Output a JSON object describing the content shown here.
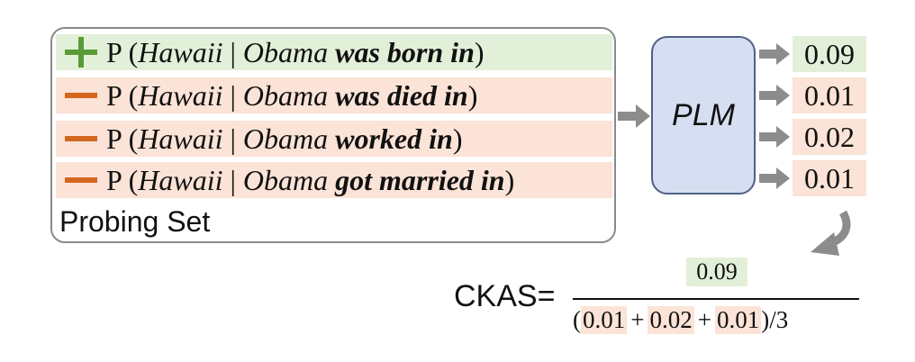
{
  "probing_set": {
    "label": "Probing Set",
    "rows": [
      {
        "sign": "+",
        "p": "P (",
        "entity": "Hawaii",
        "bar": " | ",
        "subject": "Obama",
        "relation": " was born in",
        "close": ")"
      },
      {
        "sign": "−",
        "p": "P (",
        "entity": "Hawaii",
        "bar": " | ",
        "subject": "Obama",
        "relation": " was died in",
        "close": ")"
      },
      {
        "sign": "−",
        "p": "P (",
        "entity": "Hawaii",
        "bar": " | ",
        "subject": "Obama",
        "relation": " worked in",
        "close": ")"
      },
      {
        "sign": "−",
        "p": "P (",
        "entity": "Hawaii",
        "bar": " | ",
        "subject": "Obama",
        "relation": " got married in",
        "close": ")"
      }
    ]
  },
  "model": {
    "label": "PLM"
  },
  "outputs": [
    "0.09",
    "0.01",
    "0.02",
    "0.01"
  ],
  "formula": {
    "label": "CKAS=",
    "numerator": "0.09",
    "den_open": "(",
    "den_terms": [
      "0.01",
      "0.02",
      "0.01"
    ],
    "den_plus": "+",
    "den_close": ")/3"
  },
  "colors": {
    "positive_bg": "#e3f0d9",
    "negative_bg": "#fbe3d7",
    "positive_sign": "#5a9a36",
    "negative_sign": "#d4671f",
    "model_fill": "#d6dff1",
    "arrow": "#8c8c8c"
  }
}
